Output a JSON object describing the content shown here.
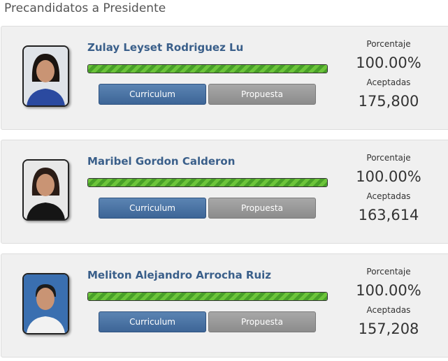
{
  "title": "Precandidatos a Presidente",
  "labels": {
    "percent": "Porcentaje",
    "accepted": "Aceptadas",
    "cv": "Curriculum",
    "proposal": "Propuesta"
  },
  "colors": {
    "name": "#3a5f8a",
    "progress": "#5cb531",
    "cv_button": "#3d6597",
    "proposal_button": "#8c8c8c"
  },
  "candidates": [
    {
      "name": "Zulay Leyset Rodriguez Lu",
      "percent": "100.00%",
      "progress": 100,
      "accepted": "175,800"
    },
    {
      "name": "Maribel Gordon Calderon",
      "percent": "100.00%",
      "progress": 100,
      "accepted": "163,614"
    },
    {
      "name": "Meliton Alejandro Arrocha Ruiz",
      "percent": "100.00%",
      "progress": 100,
      "accepted": "157,208"
    }
  ]
}
